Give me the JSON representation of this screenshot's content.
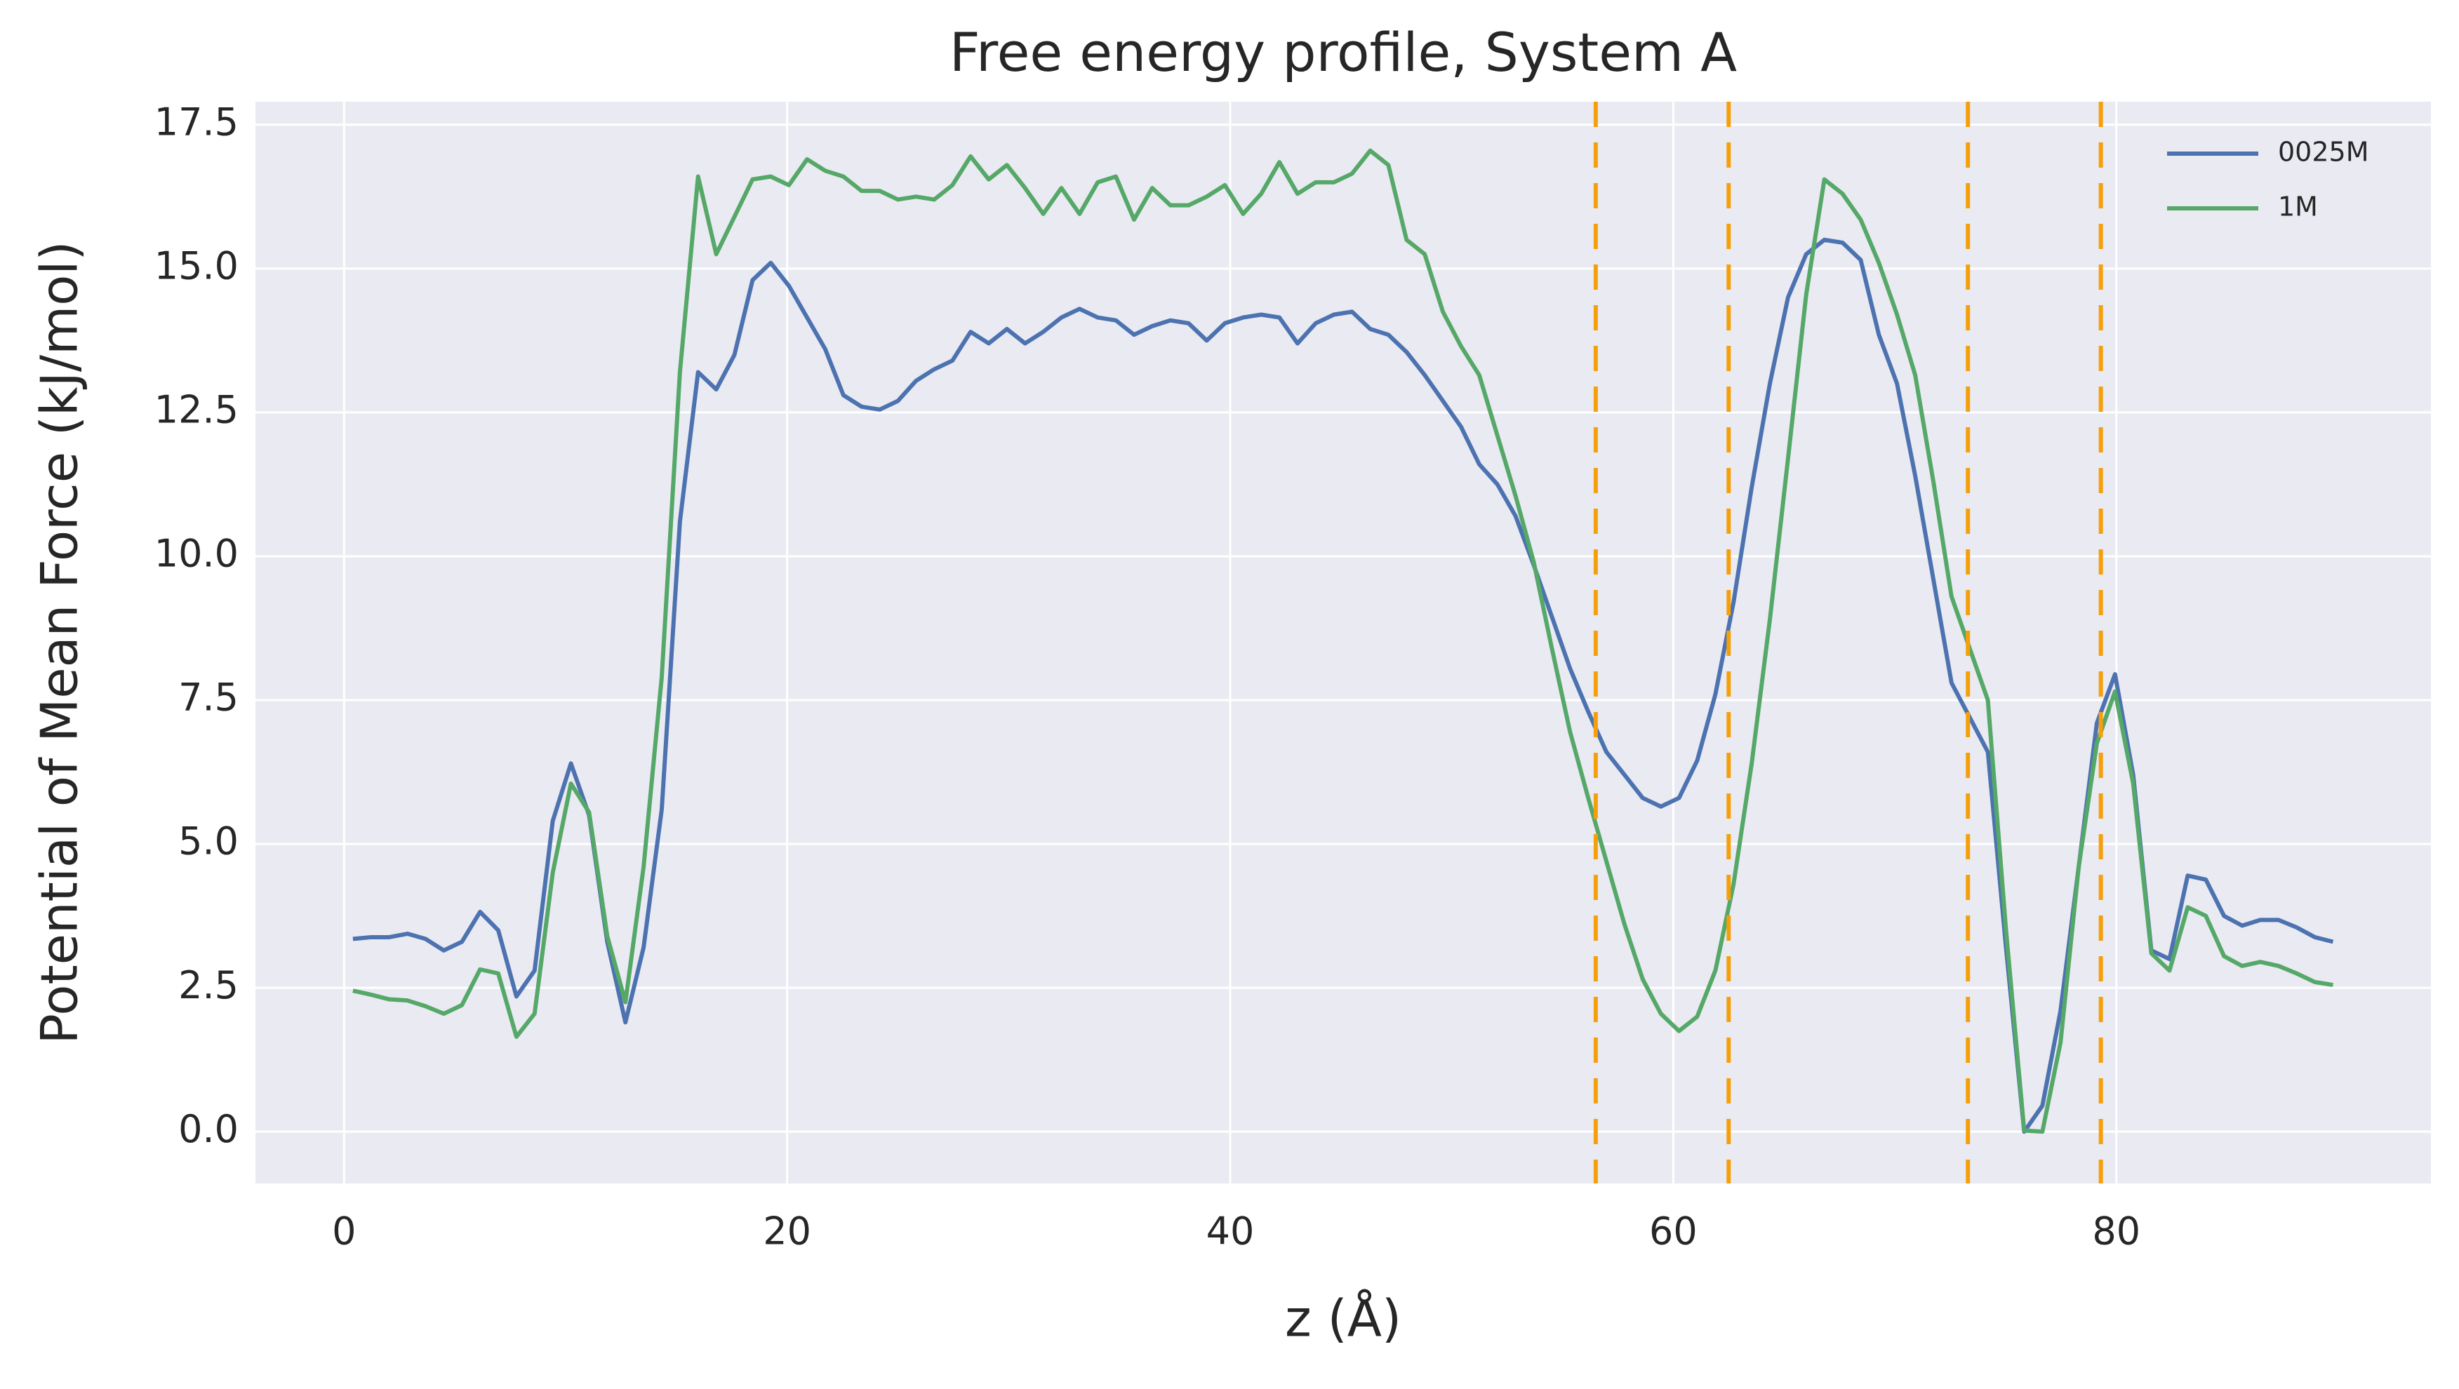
{
  "chart_data": {
    "type": "line",
    "title": "Free energy profile, System A",
    "xlabel": "z (Å)",
    "ylabel": "Potential of Mean Force (kJ/mol)",
    "x": [
      0.4,
      1.22,
      2.04,
      2.86,
      3.68,
      4.5,
      5.32,
      6.14,
      6.96,
      7.78,
      8.6,
      9.42,
      10.24,
      11.06,
      11.88,
      12.7,
      13.52,
      14.34,
      15.16,
      15.98,
      16.8,
      17.62,
      18.44,
      19.26,
      20.08,
      20.9,
      21.72,
      22.54,
      23.36,
      24.18,
      25.0,
      25.82,
      26.64,
      27.46,
      28.28,
      29.1,
      29.92,
      30.74,
      31.56,
      32.38,
      33.2,
      34.02,
      34.84,
      35.66,
      36.48,
      37.3,
      38.12,
      38.94,
      39.76,
      40.58,
      41.4,
      42.22,
      43.04,
      43.86,
      44.68,
      45.5,
      46.32,
      47.14,
      47.96,
      48.78,
      49.6,
      50.42,
      51.24,
      52.06,
      52.88,
      53.7,
      54.52,
      55.34,
      56.16,
      56.98,
      57.8,
      58.62,
      59.44,
      60.26,
      61.08,
      61.9,
      62.72,
      63.54,
      64.36,
      65.18,
      66.0,
      66.82,
      67.64,
      68.46,
      69.28,
      70.1,
      70.92,
      71.74,
      72.56,
      73.38,
      74.2,
      75.02,
      75.84,
      76.66,
      77.48,
      78.3,
      79.12,
      79.94,
      80.76,
      81.58,
      82.4,
      83.22,
      84.04,
      84.86,
      85.68,
      86.5,
      87.32,
      88.14,
      88.96,
      89.78
    ],
    "series": [
      {
        "name": "0025M",
        "color": "#4c72b0",
        "values": [
          3.35,
          3.38,
          3.38,
          3.44,
          3.35,
          3.15,
          3.3,
          3.82,
          3.5,
          2.35,
          2.8,
          5.4,
          6.4,
          5.5,
          3.3,
          1.9,
          3.2,
          5.6,
          10.6,
          13.2,
          12.9,
          13.5,
          14.8,
          15.1,
          14.7,
          14.15,
          13.6,
          12.8,
          12.6,
          12.55,
          12.7,
          13.05,
          13.25,
          13.4,
          13.9,
          13.7,
          13.95,
          13.7,
          13.9,
          14.15,
          14.3,
          14.15,
          14.1,
          13.85,
          14.0,
          14.1,
          14.05,
          13.75,
          14.05,
          14.15,
          14.2,
          14.15,
          13.7,
          14.05,
          14.2,
          14.25,
          13.95,
          13.85,
          13.55,
          13.15,
          12.7,
          12.25,
          11.6,
          11.25,
          10.7,
          9.85,
          8.95,
          8.05,
          7.3,
          6.6,
          6.2,
          5.8,
          5.65,
          5.8,
          6.45,
          7.6,
          9.2,
          11.2,
          13.0,
          14.5,
          15.25,
          15.5,
          15.45,
          15.15,
          13.85,
          13.0,
          11.4,
          9.6,
          7.8,
          7.2,
          6.6,
          3.2,
          0.0,
          0.45,
          2.1,
          4.6,
          7.1,
          7.95,
          6.2,
          3.15,
          3.0,
          4.45,
          4.38,
          3.75,
          3.58,
          3.68,
          3.68,
          3.55,
          3.38,
          3.3
        ]
      },
      {
        "name": "1M",
        "color": "#55a868",
        "values": [
          2.45,
          2.38,
          2.3,
          2.28,
          2.18,
          2.05,
          2.2,
          2.82,
          2.75,
          1.65,
          2.05,
          4.5,
          6.05,
          5.55,
          3.4,
          2.25,
          4.6,
          7.9,
          13.2,
          16.6,
          15.25,
          15.9,
          16.55,
          16.6,
          16.45,
          16.9,
          16.7,
          16.6,
          16.35,
          16.35,
          16.2,
          16.25,
          16.2,
          16.45,
          16.95,
          16.55,
          16.8,
          16.4,
          15.95,
          16.4,
          15.95,
          16.5,
          16.6,
          15.85,
          16.4,
          16.1,
          16.1,
          16.25,
          16.45,
          15.95,
          16.3,
          16.85,
          16.3,
          16.5,
          16.5,
          16.65,
          17.05,
          16.8,
          15.5,
          15.25,
          14.25,
          13.65,
          13.15,
          12.1,
          11.05,
          9.9,
          8.4,
          6.95,
          5.8,
          4.7,
          3.6,
          2.65,
          2.05,
          1.75,
          2.0,
          2.8,
          4.3,
          6.4,
          8.9,
          11.7,
          14.55,
          16.55,
          16.3,
          15.85,
          15.1,
          14.2,
          13.15,
          11.3,
          9.3,
          8.4,
          7.5,
          3.5,
          0.02,
          0.0,
          1.55,
          4.6,
          6.75,
          7.65,
          6.05,
          3.1,
          2.8,
          3.9,
          3.75,
          3.05,
          2.88,
          2.95,
          2.88,
          2.75,
          2.6,
          2.55
        ]
      }
    ],
    "vlines": [
      56.5,
      62.5,
      73.3,
      79.3
    ],
    "vline_color": "#f5a00a",
    "xlim": [
      -4.0,
      94.2
    ],
    "ylim": [
      -0.9,
      17.9
    ],
    "xticks": [
      0,
      20,
      40,
      60,
      80
    ],
    "yticks": [
      {
        "value": 0,
        "label": "0.0"
      },
      2.5,
      {
        "value": 5,
        "label": "5.0"
      },
      7.5,
      {
        "value": 10,
        "label": "10.0"
      },
      12.5,
      {
        "value": 15,
        "label": "15.0"
      },
      17.5
    ],
    "grid": true,
    "legend": "upper right",
    "background": "#eaeaf2"
  }
}
